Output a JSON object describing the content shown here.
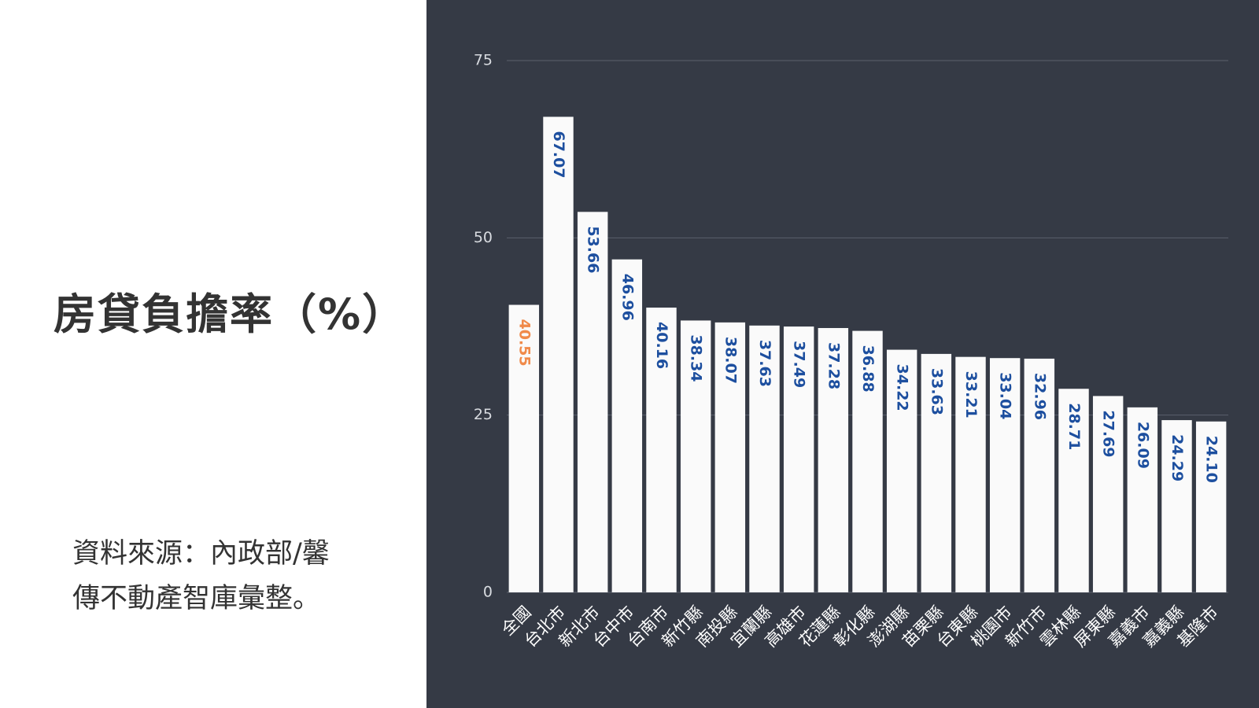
{
  "chart_data": {
    "type": "bar",
    "title": "房貸負擔率（%）",
    "source": "資料來源：內政部/馨傳不動產智庫彙整。",
    "categories": [
      "全國",
      "台北市",
      "新北市",
      "台中市",
      "台南市",
      "新竹縣",
      "南投縣",
      "宜蘭縣",
      "高雄市",
      "花蓮縣",
      "彰化縣",
      "澎湖縣",
      "苗栗縣",
      "台東縣",
      "桃園市",
      "新竹市",
      "雲林縣",
      "屏東縣",
      "嘉義市",
      "嘉義縣",
      "基隆市"
    ],
    "values": [
      40.55,
      67.07,
      53.66,
      46.96,
      40.16,
      38.34,
      38.07,
      37.63,
      37.49,
      37.28,
      36.88,
      34.22,
      33.63,
      33.21,
      33.04,
      32.96,
      28.71,
      27.69,
      26.09,
      24.29,
      24.1
    ],
    "value_labels": [
      "40.55",
      "67.07",
      "53.66",
      "46.96",
      "40.16",
      "38.34",
      "38.07",
      "37.63",
      "37.49",
      "37.28",
      "36.88",
      "34.22",
      "33.63",
      "33.21",
      "33.04",
      "32.96",
      "28.71",
      "27.69",
      "26.09",
      "24.29",
      "24.10"
    ],
    "color": "#fafafa",
    "value_label_color": "#1d4f9f",
    "highlight_index": 0,
    "highlight_label_color": "#f08a4a",
    "ylim": [
      0,
      75
    ],
    "yticks": [
      0,
      25,
      50,
      75
    ],
    "grid": true
  }
}
